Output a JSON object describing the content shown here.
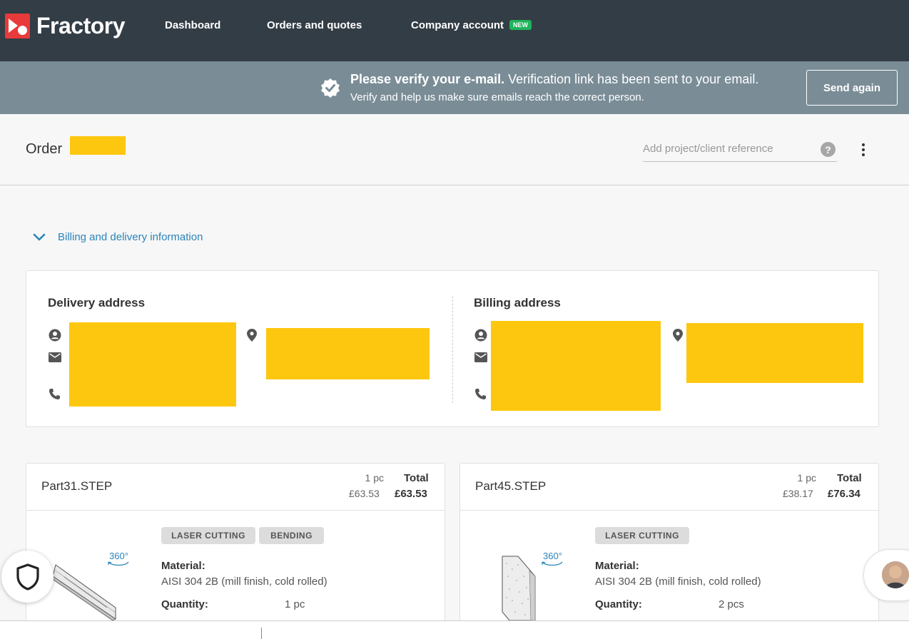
{
  "nav": {
    "logo": "Fractory",
    "links": {
      "dashboard": "Dashboard",
      "orders": "Orders and quotes",
      "company": "Company account"
    },
    "new_badge": "NEW",
    "brand_color": "#e83a3a",
    "bg_color": "#333d46"
  },
  "banner": {
    "title_bold": "Please verify your e-mail.",
    "title_rest": " Verification link has been sent to your email.",
    "subtitle": "Verify and help us make sure emails reach the correct person.",
    "button": "Send again",
    "icon": "verified-check-icon"
  },
  "order": {
    "title": "Order",
    "reference_placeholder": "Add project/client reference",
    "help_symbol": "?"
  },
  "billing": {
    "toggle_label": "Billing and delivery information",
    "delivery_title": "Delivery address",
    "billing_title": "Billing address",
    "icons": [
      "person-icon",
      "email-icon",
      "phone-icon",
      "location-pin-icon"
    ]
  },
  "parts": [
    {
      "name": "Part31.STEP",
      "qty_pc": "1 pc",
      "total_label": "Total",
      "unit_price": "£63.53",
      "total_price": "£63.53",
      "tags": [
        "LASER CUTTING",
        "BENDING"
      ],
      "rotate_label": "360°",
      "material_label": "Material:",
      "material": "AISI 304 2B (mill finish, cold rolled)",
      "quantity_label": "Quantity:",
      "quantity": "1 pc"
    },
    {
      "name": "Part45.STEP",
      "qty_pc": "1 pc",
      "total_label": "Total",
      "unit_price": "£38.17",
      "total_price": "£76.34",
      "tags": [
        "LASER CUTTING"
      ],
      "rotate_label": "360°",
      "material_label": "Material:",
      "material": "AISI 304 2B (mill finish, cold rolled)",
      "quantity_label": "Quantity:",
      "quantity": "2 pcs"
    }
  ]
}
